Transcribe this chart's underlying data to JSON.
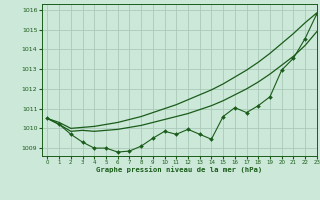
{
  "title": "Graphe pression niveau de la mer (hPa)",
  "bg_color": "#cce8d8",
  "grid_color": "#aacaba",
  "line_color": "#1a5c1a",
  "xlim": [
    -0.5,
    23
  ],
  "ylim": [
    1008.6,
    1016.3
  ],
  "yticks": [
    1009,
    1010,
    1011,
    1012,
    1013,
    1014,
    1015,
    1016
  ],
  "xticks": [
    0,
    1,
    2,
    3,
    4,
    5,
    6,
    7,
    8,
    9,
    10,
    11,
    12,
    13,
    14,
    15,
    16,
    17,
    18,
    19,
    20,
    21,
    22,
    23
  ],
  "hours": [
    0,
    1,
    2,
    3,
    4,
    5,
    6,
    7,
    8,
    9,
    10,
    11,
    12,
    13,
    14,
    15,
    16,
    17,
    18,
    19,
    20,
    21,
    22,
    23
  ],
  "smooth1": [
    1010.5,
    1010.2,
    1009.85,
    1009.9,
    1009.85,
    1009.9,
    1009.95,
    1010.05,
    1010.15,
    1010.3,
    1010.45,
    1010.6,
    1010.75,
    1010.95,
    1011.15,
    1011.4,
    1011.7,
    1012.0,
    1012.35,
    1012.75,
    1013.2,
    1013.65,
    1014.2,
    1014.9
  ],
  "smooth2": [
    1010.5,
    1010.3,
    1010.0,
    1010.05,
    1010.1,
    1010.2,
    1010.3,
    1010.45,
    1010.6,
    1010.8,
    1011.0,
    1011.2,
    1011.45,
    1011.7,
    1011.95,
    1012.25,
    1012.6,
    1012.95,
    1013.35,
    1013.8,
    1014.3,
    1014.8,
    1015.35,
    1015.85
  ],
  "jagged": [
    1010.5,
    1010.2,
    1009.7,
    1009.3,
    1009.0,
    1009.0,
    1008.8,
    1008.85,
    1009.1,
    1009.5,
    1009.85,
    1009.7,
    1009.95,
    1009.7,
    1009.45,
    1010.6,
    1011.05,
    1010.8,
    1011.15,
    1011.6,
    1012.95,
    1013.55,
    1014.55,
    1015.8
  ]
}
